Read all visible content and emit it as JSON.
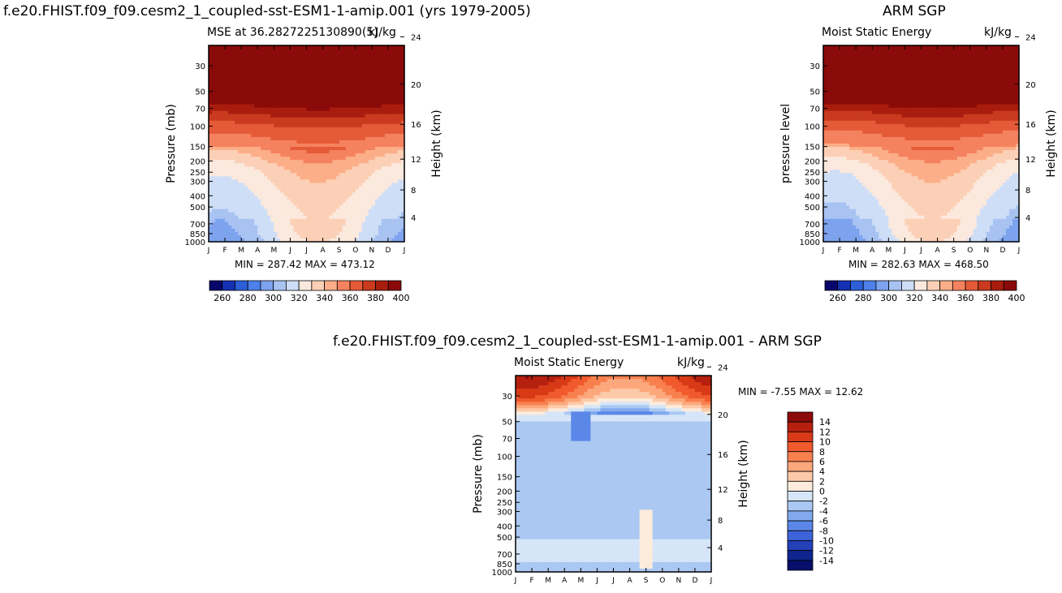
{
  "page": {
    "main_title": "f.e20.FHIST.f09_f09.cesm2_1_coupled-sst-ESM1-1-amip.001 (yrs 1979-2005)",
    "right_title": "ARM SGP",
    "bottom_title": "f.e20.FHIST.f09_f09.cesm2_1_coupled-sst-ESM1-1-amip.001 - ARM SGP"
  },
  "panels": {
    "left": {
      "left_label": "MSE at 36.2827225130890(5)",
      "right_label": "kJ/kg",
      "stats": "MIN = 287.42 MAX = 473.12",
      "ylabel": "Pressure (mb)",
      "ylabel2": "Height (km)"
    },
    "right": {
      "left_label": "Moist Static Energy",
      "right_label": "kJ/kg",
      "stats": "MIN = 282.63 MAX = 468.50",
      "ylabel": "pressure level",
      "ylabel2": "Height (km)"
    },
    "diff": {
      "left_label": "Moist Static Energy",
      "right_label": "kJ/kg",
      "stats": "MIN =  -7.55 MAX =  12.62",
      "ylabel": "Pressure (mb)",
      "ylabel2": "Height (km)"
    }
  },
  "chart_data": [
    {
      "type": "heatmap",
      "name": "model",
      "x_tick_labels": [
        "J",
        "F",
        "M",
        "A",
        "M",
        "J",
        "J",
        "A",
        "S",
        "O",
        "N",
        "D",
        "J"
      ],
      "pressure_ticks": [
        30,
        50,
        70,
        100,
        150,
        200,
        250,
        300,
        400,
        500,
        700,
        850,
        1000
      ],
      "height_ticks": [
        4,
        8,
        12,
        16,
        20,
        24
      ],
      "value_range": [
        287.42,
        473.12
      ],
      "mse_by_level_annual": {
        "1000": 315,
        "850": 320,
        "700": 322,
        "500": 326,
        "400": 329,
        "300": 334,
        "250": 337,
        "200": 345,
        "150": 360,
        "100": 375,
        "70": 395,
        "50": 420,
        "30": 460
      },
      "colorbar_labels": [
        "260",
        "280",
        "300",
        "320",
        "340",
        "360",
        "380",
        "400"
      ],
      "colorbar_colors": [
        "#08066b",
        "#1530b2",
        "#2c5fd8",
        "#4d80ea",
        "#7ea3ee",
        "#a8c3f2",
        "#cfdef7",
        "#fbe9de",
        "#fcd0b6",
        "#fbae88",
        "#f5825e",
        "#e55a38",
        "#c93a1e",
        "#a91d0e",
        "#8b0a0a"
      ]
    },
    {
      "type": "heatmap",
      "name": "obs",
      "x_tick_labels": [
        "J",
        "F",
        "M",
        "A",
        "M",
        "J",
        "J",
        "A",
        "S",
        "O",
        "N",
        "D",
        "J"
      ],
      "pressure_ticks": [
        30,
        50,
        70,
        100,
        150,
        200,
        250,
        300,
        400,
        500,
        700,
        850,
        1000
      ],
      "height_ticks": [
        4,
        8,
        12,
        16,
        20,
        24
      ],
      "value_range": [
        282.63,
        468.5
      ],
      "mse_by_level_annual": {
        "1000": 313,
        "850": 318,
        "700": 321,
        "500": 325,
        "400": 328,
        "300": 333,
        "250": 336,
        "200": 343,
        "150": 358,
        "100": 373,
        "70": 393,
        "50": 418,
        "30": 458
      },
      "colorbar_labels": [
        "260",
        "280",
        "300",
        "320",
        "340",
        "360",
        "380",
        "400"
      ],
      "colorbar_colors": [
        "#08066b",
        "#1530b2",
        "#2c5fd8",
        "#4d80ea",
        "#7ea3ee",
        "#a8c3f2",
        "#cfdef7",
        "#fbe9de",
        "#fcd0b6",
        "#fbae88",
        "#f5825e",
        "#e55a38",
        "#c93a1e",
        "#a91d0e",
        "#8b0a0a"
      ]
    },
    {
      "type": "heatmap",
      "name": "difference",
      "x_tick_labels": [
        "J",
        "F",
        "M",
        "A",
        "M",
        "J",
        "J",
        "A",
        "S",
        "O",
        "N",
        "D",
        "J"
      ],
      "pressure_ticks": [
        30,
        50,
        70,
        100,
        150,
        200,
        250,
        300,
        400,
        500,
        700,
        850,
        1000
      ],
      "height_ticks": [
        4,
        8,
        12,
        16,
        20,
        24
      ],
      "value_range": [
        -7.55,
        12.62
      ],
      "colorbar_labels": [
        "14",
        "12",
        "10",
        "8",
        "6",
        "4",
        "2",
        "0",
        "-2",
        "-4",
        "-6",
        "-8",
        "-10",
        "-12",
        "-14"
      ],
      "colorbar_colors": [
        "#8b0a0a",
        "#b5200f",
        "#d83a17",
        "#f05a2c",
        "#f8804e",
        "#fca77c",
        "#fdcaa9",
        "#fdebdc",
        "#d6e6f8",
        "#aac8f2",
        "#82a9ee",
        "#5b87e8",
        "#3d63d8",
        "#2240b8",
        "#0e2590",
        "#06106a"
      ],
      "diff_by_level_annual": {
        "1000": -2,
        "850": -2.5,
        "700": -1.5,
        "500": -2,
        "400": -2,
        "300": -2.5,
        "250": -2.5,
        "200": -3,
        "150": -3,
        "100": -2,
        "70": -2.5,
        "50": -3,
        "30": 6
      }
    }
  ]
}
